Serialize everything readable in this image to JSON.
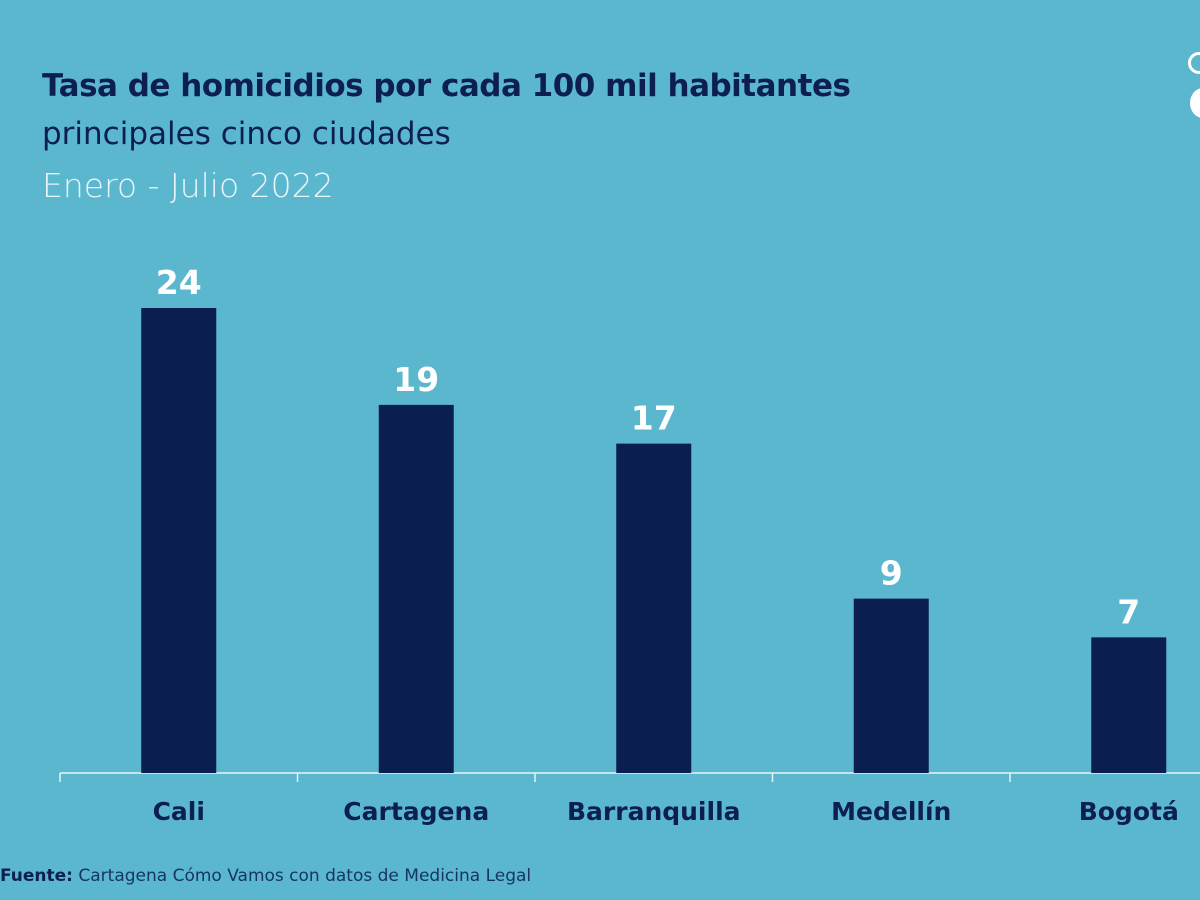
{
  "chart_data": {
    "type": "bar",
    "title": "Tasa de homicidios por cada 100 mil habitantes",
    "subtitle": "principales cinco ciudades",
    "period": "Enero - Julio 2022",
    "categories": [
      "Cali",
      "Cartagena",
      "Barranquilla",
      "Medellín",
      "Bogotá"
    ],
    "values": [
      24,
      19,
      17,
      9,
      7
    ],
    "data_labels": [
      "24",
      "19",
      "17",
      "9",
      "7"
    ],
    "ylim": [
      0,
      24
    ],
    "grid": false,
    "colors": {
      "bar": "#0b1e50",
      "background": "#5bb7ce",
      "label": "#ffffff",
      "axis": "#e6f4f8"
    }
  },
  "source": {
    "label": "Fuente:",
    "text": "Cartagena Cómo Vamos con datos de Medicina Legal"
  }
}
